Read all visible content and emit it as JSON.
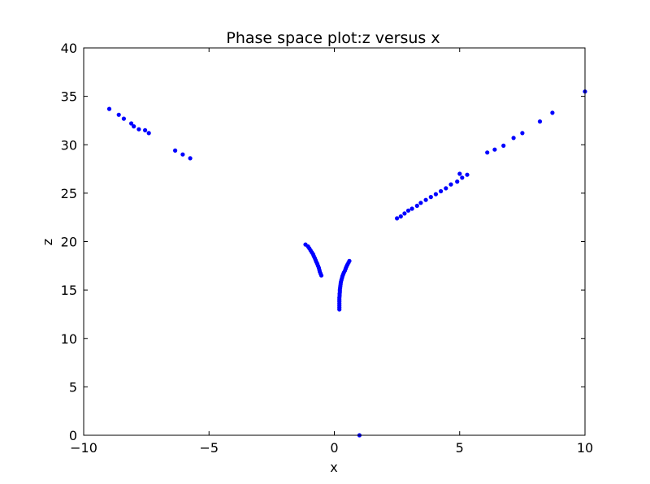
{
  "chart_data": {
    "type": "scatter",
    "title": "Phase space plot:z versus x",
    "xlabel": "x",
    "ylabel": "z",
    "xlim": [
      -10,
      10
    ],
    "ylim": [
      0,
      40
    ],
    "xticks": [
      -10,
      -5,
      0,
      5,
      10
    ],
    "yticks": [
      0,
      5,
      10,
      15,
      20,
      25,
      30,
      35,
      40
    ],
    "xtick_labels": [
      "−10",
      "−5",
      "0",
      "5",
      "10"
    ],
    "ytick_labels": [
      "0",
      "5",
      "10",
      "15",
      "20",
      "25",
      "30",
      "35",
      "40"
    ],
    "grid": false,
    "marker_color": "#0000ff",
    "points": [
      [
        -8.98,
        33.7
      ],
      [
        -8.6,
        33.1
      ],
      [
        -8.4,
        32.7
      ],
      [
        -8.1,
        32.2
      ],
      [
        -8.0,
        31.9
      ],
      [
        -7.8,
        31.6
      ],
      [
        -7.55,
        31.5
      ],
      [
        -7.4,
        31.2
      ],
      [
        -6.35,
        29.4
      ],
      [
        -6.05,
        29.0
      ],
      [
        -5.75,
        28.6
      ],
      [
        -1.15,
        19.7
      ],
      [
        -1.05,
        19.5
      ],
      [
        -1.0,
        19.3
      ],
      [
        -0.95,
        19.1
      ],
      [
        -0.9,
        18.9
      ],
      [
        -0.85,
        18.7
      ],
      [
        -0.82,
        18.5
      ],
      [
        -0.78,
        18.3
      ],
      [
        -0.75,
        18.1
      ],
      [
        -0.72,
        17.9
      ],
      [
        -0.68,
        17.7
      ],
      [
        -0.65,
        17.5
      ],
      [
        -0.62,
        17.3
      ],
      [
        -0.6,
        17.1
      ],
      [
        -0.58,
        16.9
      ],
      [
        -0.55,
        16.7
      ],
      [
        -0.52,
        16.5
      ],
      [
        0.6,
        18.0
      ],
      [
        0.56,
        17.8
      ],
      [
        0.52,
        17.6
      ],
      [
        0.48,
        17.4
      ],
      [
        0.45,
        17.2
      ],
      [
        0.42,
        17.0
      ],
      [
        0.38,
        16.8
      ],
      [
        0.35,
        16.6
      ],
      [
        0.32,
        16.4
      ],
      [
        0.3,
        16.2
      ],
      [
        0.28,
        16.0
      ],
      [
        0.26,
        15.8
      ],
      [
        0.25,
        15.6
      ],
      [
        0.24,
        15.4
      ],
      [
        0.23,
        15.2
      ],
      [
        0.22,
        15.0
      ],
      [
        0.22,
        14.8
      ],
      [
        0.21,
        14.6
      ],
      [
        0.21,
        14.4
      ],
      [
        0.2,
        14.2
      ],
      [
        0.2,
        14.0
      ],
      [
        0.2,
        13.8
      ],
      [
        0.2,
        13.6
      ],
      [
        0.2,
        13.4
      ],
      [
        0.2,
        13.2
      ],
      [
        0.2,
        13.0
      ],
      [
        2.5,
        22.4
      ],
      [
        2.65,
        22.6
      ],
      [
        2.8,
        22.9
      ],
      [
        2.95,
        23.2
      ],
      [
        3.1,
        23.4
      ],
      [
        3.3,
        23.7
      ],
      [
        3.45,
        24.0
      ],
      [
        3.65,
        24.3
      ],
      [
        3.85,
        24.6
      ],
      [
        4.05,
        24.9
      ],
      [
        4.25,
        25.2
      ],
      [
        4.45,
        25.5
      ],
      [
        4.65,
        25.9
      ],
      [
        4.9,
        26.2
      ],
      [
        5.1,
        26.6
      ],
      [
        5.3,
        26.9
      ],
      [
        5.0,
        27.0
      ],
      [
        6.1,
        29.2
      ],
      [
        6.4,
        29.5
      ],
      [
        6.75,
        29.9
      ],
      [
        7.15,
        30.7
      ],
      [
        7.5,
        31.2
      ],
      [
        8.2,
        32.4
      ],
      [
        8.7,
        33.3
      ],
      [
        10.0,
        35.5
      ],
      [
        1.0,
        0.0
      ]
    ]
  }
}
